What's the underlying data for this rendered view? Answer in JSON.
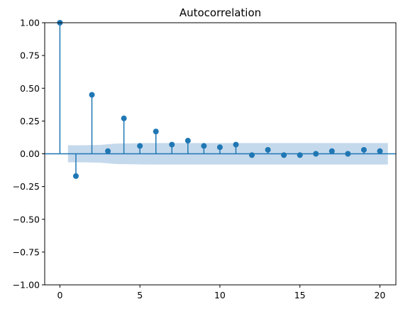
{
  "chart_data": {
    "type": "stem",
    "title": "Autocorrelation",
    "xlabel": "",
    "ylabel": "",
    "xlim": [
      -0.95,
      21.0
    ],
    "ylim": [
      -1.0,
      1.0
    ],
    "x_ticks": [
      0,
      5,
      10,
      15,
      20
    ],
    "x_tick_labels": [
      "0",
      "5",
      "10",
      "15",
      "20"
    ],
    "y_ticks": [
      1.0,
      0.75,
      0.5,
      0.25,
      0.0,
      -0.25,
      -0.5,
      -0.75,
      -1.0
    ],
    "y_tick_labels": [
      "1.00",
      "0.75",
      "0.50",
      "0.25",
      "0.00",
      "−0.25",
      "−0.50",
      "−0.75",
      "−1.00"
    ],
    "lags": [
      0,
      1,
      2,
      3,
      4,
      5,
      6,
      7,
      8,
      9,
      10,
      11,
      12,
      13,
      14,
      15,
      16,
      17,
      18,
      19,
      20
    ],
    "values": [
      1.0,
      -0.17,
      0.45,
      0.02,
      0.27,
      0.06,
      0.17,
      0.07,
      0.1,
      0.06,
      0.05,
      0.07,
      -0.01,
      0.03,
      -0.01,
      -0.01,
      0.0,
      0.02,
      0.0,
      0.03,
      0.02
    ],
    "confidence_band": {
      "x": [
        0.5,
        1.5,
        2.5,
        3.5,
        4.5,
        5.5,
        6.5,
        7.5,
        8.5,
        9.5,
        10.5,
        11.5,
        12.5,
        13.5,
        14.5,
        15.5,
        16.5,
        17.5,
        18.5,
        19.5,
        20.5
      ],
      "upper": [
        0.065,
        0.065,
        0.068,
        0.078,
        0.08,
        0.082,
        0.082,
        0.082,
        0.082,
        0.082,
        0.082,
        0.082,
        0.082,
        0.082,
        0.082,
        0.082,
        0.082,
        0.082,
        0.082,
        0.082,
        0.082
      ],
      "lower": [
        -0.065,
        -0.065,
        -0.068,
        -0.078,
        -0.08,
        -0.082,
        -0.082,
        -0.082,
        -0.082,
        -0.082,
        -0.082,
        -0.082,
        -0.082,
        -0.082,
        -0.082,
        -0.082,
        -0.082,
        -0.082,
        -0.082,
        -0.082,
        -0.082
      ]
    },
    "grid": false,
    "legend": "none",
    "colors": {
      "series": "#1f77b4",
      "band": "#c5d9ec",
      "axes": "#000000",
      "background": "#ffffff"
    }
  }
}
